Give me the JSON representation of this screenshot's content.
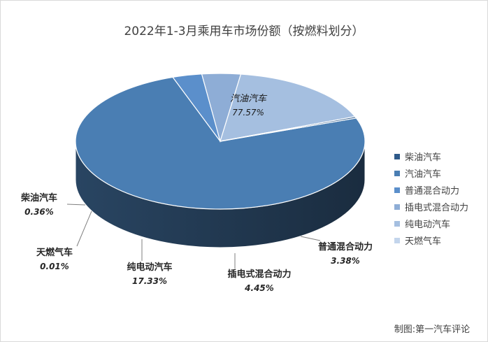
{
  "chart_data": {
    "type": "pie",
    "title": "2022年1-3月乘用车市场份额（按燃料划分）",
    "slices": [
      {
        "name": "汽油汽车",
        "value": 77.57,
        "label": "77.57%",
        "color": "#4a7eb3"
      },
      {
        "name": "普通混合动力",
        "value": 3.38,
        "label": "3.38%",
        "color": "#5b8fcb"
      },
      {
        "name": "插电式混合动力",
        "value": 4.45,
        "label": "4.45%",
        "color": "#8eadd6"
      },
      {
        "name": "纯电动汽车",
        "value": 17.33,
        "label": "17.33%",
        "color": "#a5bfe0"
      },
      {
        "name": "天燃气车",
        "value": 0.01,
        "label": "0.01%",
        "color": "#c3d5ec"
      },
      {
        "name": "柴油汽车",
        "value": 0.36,
        "label": "0.36%",
        "color": "#2e5a8a"
      }
    ],
    "legend": {
      "placement": "right",
      "items": [
        "柴油汽车",
        "汽油汽车",
        "普通混合动力",
        "插电式混合动力",
        "纯电动汽车",
        "天燃气车"
      ],
      "colors": [
        "#2e5a8a",
        "#4a7eb3",
        "#5b8fcb",
        "#8eadd6",
        "#a5bfe0",
        "#c3d5ec"
      ]
    }
  },
  "credit": "制图:第一汽车评论"
}
